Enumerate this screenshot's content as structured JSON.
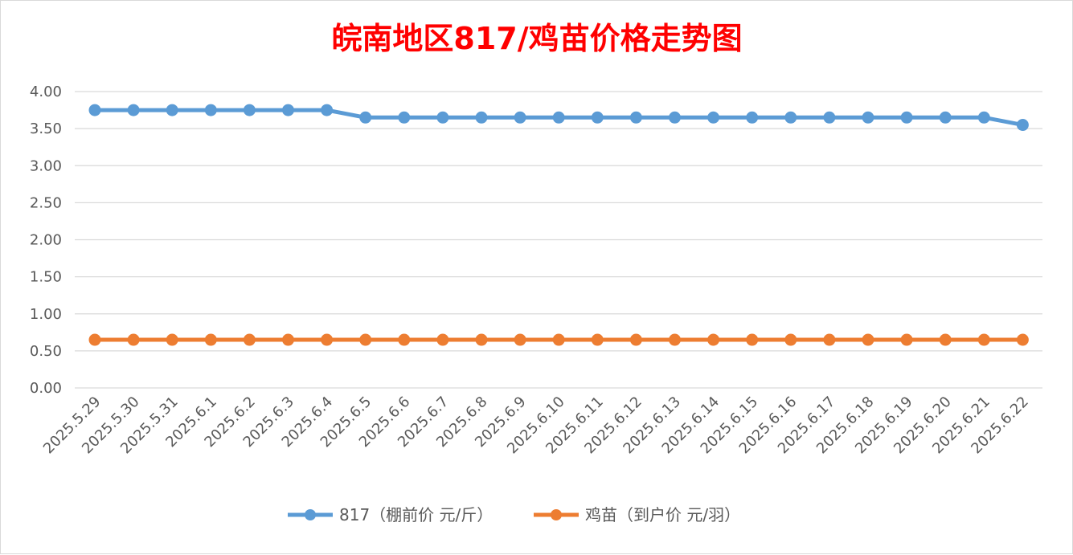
{
  "chart_data": {
    "type": "line",
    "title": "皖南地区817/鸡苗价格走势图",
    "title_color": "#ff0000",
    "categories": [
      "2025.5.29",
      "2025.5.30",
      "2025.5.31",
      "2025.6.1",
      "2025.6.2",
      "2025.6.3",
      "2025.6.4",
      "2025.6.5",
      "2025.6.6",
      "2025.6.7",
      "2025.6.8",
      "2025.6.9",
      "2025.6.10",
      "2025.6.11",
      "2025.6.12",
      "2025.6.13",
      "2025.6.14",
      "2025.6.15",
      "2025.6.16",
      "2025.6.17",
      "2025.6.18",
      "2025.6.19",
      "2025.6.20",
      "2025.6.21",
      "2025.6.22"
    ],
    "series": [
      {
        "name": "817（棚前价 元/斤）",
        "color": "#5b9bd5",
        "values": [
          3.75,
          3.75,
          3.75,
          3.75,
          3.75,
          3.75,
          3.75,
          3.65,
          3.65,
          3.65,
          3.65,
          3.65,
          3.65,
          3.65,
          3.65,
          3.65,
          3.65,
          3.65,
          3.65,
          3.65,
          3.65,
          3.65,
          3.65,
          3.65,
          3.55
        ]
      },
      {
        "name": "鸡苗（到户价 元/羽）",
        "color": "#ed7d31",
        "values": [
          0.65,
          0.65,
          0.65,
          0.65,
          0.65,
          0.65,
          0.65,
          0.65,
          0.65,
          0.65,
          0.65,
          0.65,
          0.65,
          0.65,
          0.65,
          0.65,
          0.65,
          0.65,
          0.65,
          0.65,
          0.65,
          0.65,
          0.65,
          0.65,
          0.65
        ]
      }
    ],
    "ylim": [
      0,
      4
    ],
    "yticks": [
      "0.00",
      "0.50",
      "1.00",
      "1.50",
      "2.00",
      "2.50",
      "3.00",
      "3.50",
      "4.00"
    ],
    "grid": "horizontal",
    "legend_position": "bottom"
  }
}
